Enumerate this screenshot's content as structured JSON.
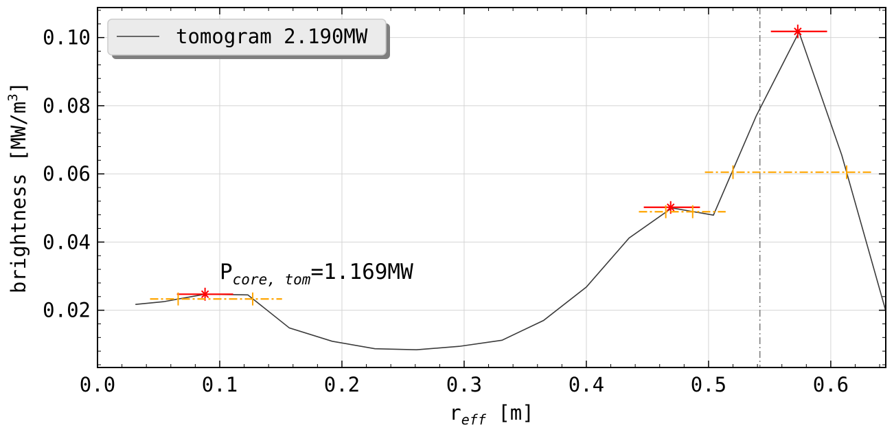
{
  "chart_data": {
    "type": "line",
    "xlabel_base": "r",
    "xlabel_sub": "eff",
    "xlabel_rest": " [m]",
    "ylabel_base": "brightness [MW/m",
    "ylabel_sup": "3",
    "ylabel_end": "]",
    "xlim": [
      0.0,
      0.645
    ],
    "ylim": [
      0.0032,
      0.1088
    ],
    "grid": true,
    "legend_placement": "top-left",
    "x_ticks": [
      0.0,
      0.1,
      0.2,
      0.3,
      0.4,
      0.5,
      0.6
    ],
    "x_tick_labels": [
      "0.0",
      "0.1",
      "0.2",
      "0.3",
      "0.4",
      "0.5",
      "0.6"
    ],
    "y_ticks": [
      0.02,
      0.04,
      0.06,
      0.08,
      0.1
    ],
    "y_tick_labels": [
      "0.02",
      "0.04",
      "0.06",
      "0.08",
      "0.10"
    ],
    "series": [
      {
        "name": "tomogram 2.190MW",
        "color": "#3a3a3a",
        "x": [
          0.031,
          0.054,
          0.088,
          0.123,
          0.157,
          0.192,
          0.227,
          0.261,
          0.296,
          0.331,
          0.365,
          0.4,
          0.435,
          0.47,
          0.504,
          0.539,
          0.574,
          0.609,
          0.645
        ],
        "y": [
          0.0217,
          0.0225,
          0.0247,
          0.0245,
          0.0148,
          0.0109,
          0.0087,
          0.0084,
          0.0094,
          0.0112,
          0.017,
          0.0268,
          0.0412,
          0.05,
          0.0479,
          0.077,
          0.1016,
          0.0655,
          0.0198
        ]
      }
    ],
    "error_markers": [
      {
        "color": "#ff0000",
        "x": 0.088,
        "y": 0.0247,
        "xerr": [
          0.065,
          0.111
        ],
        "yerr": [
          0.0228,
          0.0266
        ],
        "center": true,
        "dashed": false
      },
      {
        "color": "#ffa500",
        "x": 0.097,
        "y": 0.0233,
        "xerr": [
          0.043,
          0.151
        ],
        "inner": [
          0.066,
          0.127
        ],
        "yerr": [
          0.0214,
          0.0252
        ],
        "center": false,
        "dashed": true
      },
      {
        "color": "#ff0000",
        "x": 0.469,
        "y": 0.0502,
        "xerr": [
          0.447,
          0.493
        ],
        "yerr": [
          0.0483,
          0.052
        ],
        "center": true,
        "dashed": false
      },
      {
        "color": "#ffa500",
        "x": 0.469,
        "y": 0.0489,
        "xerr": [
          0.443,
          0.514
        ],
        "inner": [
          0.465,
          0.487
        ],
        "yerr": [
          0.047,
          0.0508
        ],
        "center": false,
        "dashed": true
      },
      {
        "color": "#ff0000",
        "x": 0.573,
        "y": 0.1018,
        "xerr": [
          0.551,
          0.597
        ],
        "yerr": [
          0.0998,
          0.1038
        ],
        "center": true,
        "dashed": false
      },
      {
        "color": "#ffa500",
        "x": 0.566,
        "y": 0.0605,
        "xerr": [
          0.497,
          0.634
        ],
        "inner": [
          0.52,
          0.613
        ],
        "yerr": [
          0.0585,
          0.0625
        ],
        "center": false,
        "dashed": true
      }
    ],
    "vline": {
      "x": 0.542,
      "color": "#808080"
    },
    "annotation": {
      "base": "P",
      "sub": "core, tom",
      "rest": "=1.169MW",
      "x": 0.1,
      "y": 0.0292
    }
  }
}
